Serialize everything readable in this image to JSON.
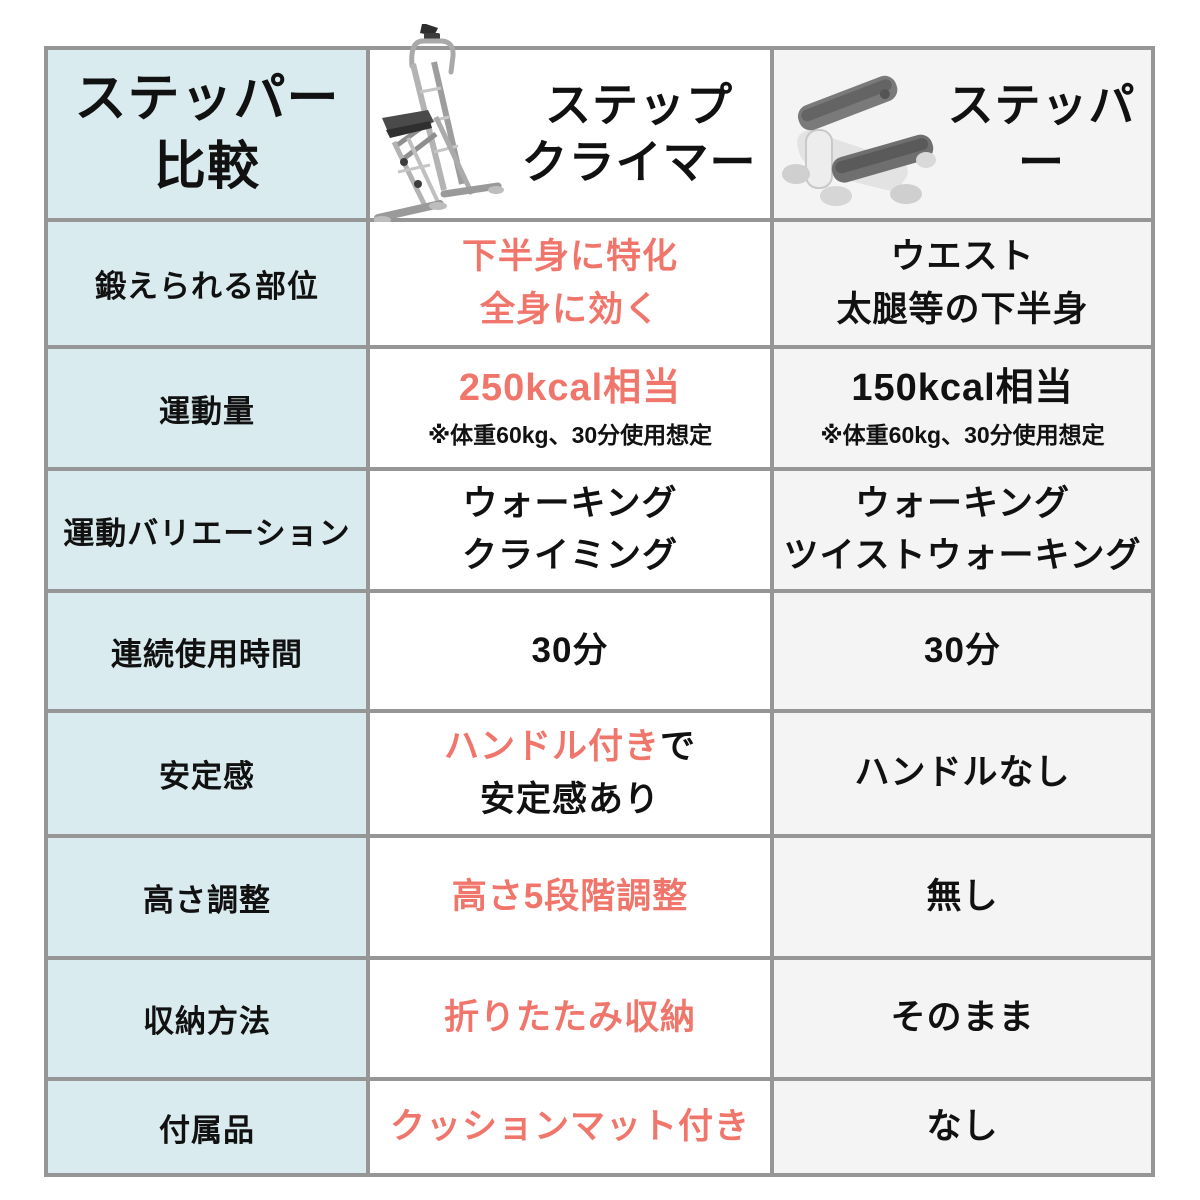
{
  "colors": {
    "accent": "#f0766b",
    "label_bg": "#d9ebee",
    "border": "#969696",
    "climber_col_bg": "#ffffff",
    "stepper_col_bg": "#f4f4f4",
    "text": "#111111"
  },
  "table": {
    "title": "ステッパー\n比較",
    "products": [
      {
        "name": "ステップ\nクライマー",
        "icon": "step-climber-icon"
      },
      {
        "name": "ステッパー",
        "icon": "stepper-icon"
      }
    ],
    "rows": [
      {
        "label": "鍛えられる部位",
        "climber": {
          "segments": [
            {
              "text": "下半身に特化\n全身に効く",
              "accent": true
            }
          ]
        },
        "stepper": {
          "segments": [
            {
              "text": "ウエスト\n太腿等の下半身",
              "accent": false
            }
          ]
        }
      },
      {
        "label": "運動量",
        "climber": {
          "large": true,
          "segments": [
            {
              "text": "250kcal相当",
              "accent": true
            }
          ],
          "note": "※体重60kg、30分使用想定"
        },
        "stepper": {
          "large": true,
          "segments": [
            {
              "text": "150kcal相当",
              "accent": false
            }
          ],
          "note": "※体重60kg、30分使用想定"
        }
      },
      {
        "label": "運動バリエーション",
        "climber": {
          "segments": [
            {
              "text": "ウォーキング\nクライミング",
              "accent": false
            }
          ]
        },
        "stepper": {
          "segments": [
            {
              "text": "ウォーキング\nツイストウォーキング",
              "accent": false
            }
          ]
        }
      },
      {
        "label": "連続使用時間",
        "climber": {
          "segments": [
            {
              "text": "30分",
              "accent": false
            }
          ]
        },
        "stepper": {
          "segments": [
            {
              "text": "30分",
              "accent": false
            }
          ]
        }
      },
      {
        "label": "安定感",
        "climber": {
          "segments": [
            {
              "text": "ハンドル付き",
              "accent": true
            },
            {
              "text": "で\n安定感あり",
              "accent": false
            }
          ]
        },
        "stepper": {
          "segments": [
            {
              "text": "ハンドルなし",
              "accent": false
            }
          ]
        }
      },
      {
        "label": "高さ調整",
        "climber": {
          "segments": [
            {
              "text": "高さ5段階調整",
              "accent": true
            }
          ]
        },
        "stepper": {
          "segments": [
            {
              "text": "無し",
              "accent": false
            }
          ]
        }
      },
      {
        "label": "収納方法",
        "climber": {
          "segments": [
            {
              "text": "折りたたみ収納",
              "accent": true
            }
          ]
        },
        "stepper": {
          "segments": [
            {
              "text": "そのまま",
              "accent": false
            }
          ]
        }
      },
      {
        "label": "付属品",
        "climber": {
          "segments": [
            {
              "text": "クッションマット付き",
              "accent": true
            }
          ]
        },
        "stepper": {
          "segments": [
            {
              "text": "なし",
              "accent": false
            }
          ]
        }
      }
    ]
  }
}
